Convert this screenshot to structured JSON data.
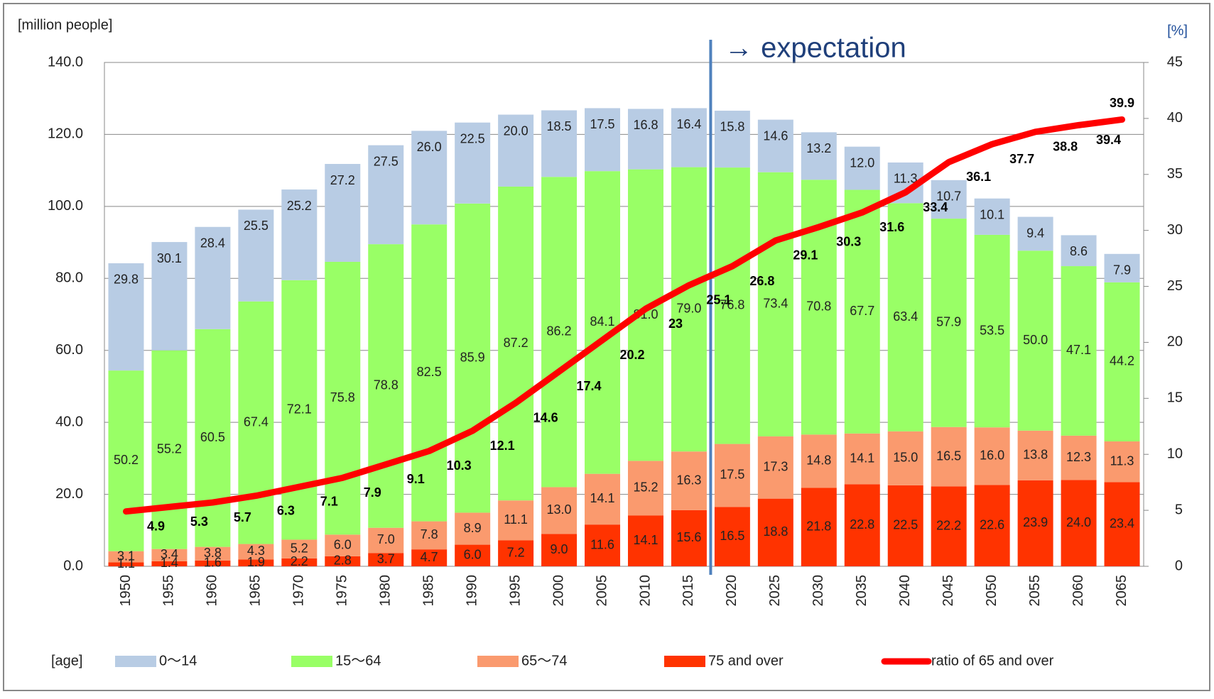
{
  "chart_data": {
    "type": "bar",
    "stacked": true,
    "y_axis_label": "[million people]",
    "y2_axis_label": "[%]",
    "legend_title": "[age]",
    "annotation": "→ expectation",
    "categories": [
      "1950",
      "1955",
      "1960",
      "1965",
      "1970",
      "1975",
      "1980",
      "1985",
      "1990",
      "1995",
      "2000",
      "2005",
      "2010",
      "2015",
      "2020",
      "2025",
      "2030",
      "2035",
      "2040",
      "2045",
      "2050",
      "2055",
      "2060",
      "2065"
    ],
    "series": [
      {
        "name": "75 and over",
        "color": "#ff3300",
        "values": [
          1.1,
          1.4,
          1.6,
          1.9,
          2.2,
          2.8,
          3.7,
          4.7,
          6.0,
          7.2,
          9.0,
          11.6,
          14.1,
          15.6,
          16.5,
          18.8,
          21.8,
          22.8,
          22.5,
          22.2,
          22.6,
          23.9,
          24.0,
          23.4
        ],
        "value_labels": [
          "1.1",
          "1.4",
          "1.6",
          "1.9",
          "2.2",
          "2.8",
          "3.7",
          "4.7",
          "6.0",
          "7.2",
          "9.0",
          "11.6",
          "14.1",
          "15.6",
          "16.5",
          "18.8",
          "21.8",
          "22.8",
          "22.5",
          "22.2",
          "22.6",
          "23.9",
          "24.0",
          "23.4"
        ]
      },
      {
        "name": "65〜74",
        "color": "#fa9a6e",
        "values": [
          3.1,
          3.4,
          3.8,
          4.3,
          5.2,
          6.0,
          7.0,
          7.8,
          8.9,
          11.1,
          13.0,
          14.1,
          15.2,
          16.3,
          17.5,
          17.3,
          14.8,
          14.1,
          15.0,
          16.5,
          16.0,
          13.8,
          12.3,
          11.3
        ],
        "value_labels": [
          "3.1",
          "3.4",
          "3.8",
          "4.3",
          "5.2",
          "6.0",
          "7.0",
          "7.8",
          "8.9",
          "11.1",
          "13.0",
          "14.1",
          "15.2",
          "16.3",
          "17.5",
          "17.3",
          "14.8",
          "14.1",
          "15.0",
          "16.5",
          "16.0",
          "13.8",
          "12.3",
          "11.3"
        ]
      },
      {
        "name": "15〜64",
        "color": "#99ff66",
        "values": [
          50.2,
          55.2,
          60.5,
          67.4,
          72.1,
          75.8,
          78.8,
          82.5,
          85.9,
          87.2,
          86.2,
          84.1,
          81.0,
          79.0,
          76.8,
          73.4,
          70.8,
          67.7,
          63.4,
          57.9,
          53.5,
          50.0,
          47.1,
          44.2
        ],
        "value_labels": [
          "50.2",
          "55.2",
          "60.5",
          "67.4",
          "72.1",
          "75.8",
          "78.8",
          "82.5",
          "85.9",
          "87.2",
          "86.2",
          "84.1",
          "81.0",
          "79.0",
          "76.8",
          "73.4",
          "70.8",
          "67.7",
          "63.4",
          "57.9",
          "53.5",
          "50.0",
          "47.1",
          "44.2"
        ]
      },
      {
        "name": "0〜14",
        "color": "#b8cce4",
        "values": [
          29.8,
          30.1,
          28.4,
          25.5,
          25.2,
          27.2,
          27.5,
          26.0,
          22.5,
          20.0,
          18.5,
          17.5,
          16.8,
          16.4,
          15.8,
          14.6,
          13.2,
          12.0,
          11.3,
          10.7,
          10.1,
          9.4,
          8.6,
          7.9
        ],
        "value_labels": [
          "29.8",
          "30.1",
          "28.4",
          "25.5",
          "25.2",
          "27.2",
          "27.5",
          "26.0",
          "22.5",
          "20.0",
          "18.5",
          "17.5",
          "16.8",
          "16.4",
          "15.8",
          "14.6",
          "13.2",
          "12.0",
          "11.3",
          "10.7",
          "10.1",
          "9.4",
          "8.6",
          "7.9"
        ]
      },
      {
        "name": "ratio of 65 and over",
        "type": "line",
        "axis": "y2",
        "color": "#ff0000",
        "values": [
          4.9,
          5.3,
          5.7,
          6.3,
          7.1,
          7.9,
          9.1,
          10.3,
          12.1,
          14.6,
          17.4,
          20.2,
          23,
          25.1,
          26.8,
          29.1,
          30.3,
          31.6,
          33.4,
          36.1,
          37.7,
          38.8,
          39.4,
          39.9
        ]
      }
    ],
    "ylim": [
      0,
      140
    ],
    "yticks": [
      {
        "value": 0,
        "label": "0.0"
      },
      {
        "value": 20,
        "label": "20.0"
      },
      {
        "value": 40,
        "label": "40.0"
      },
      {
        "value": 60,
        "label": "60.0"
      },
      {
        "value": 80,
        "label": "80.0"
      },
      {
        "value": 100,
        "label": "100.0"
      },
      {
        "value": 120,
        "label": "120.0"
      },
      {
        "value": 140,
        "label": "140.0"
      }
    ],
    "y2lim": [
      0,
      45
    ],
    "y2ticks": [
      0,
      5,
      10,
      15,
      20,
      25,
      30,
      35,
      40,
      45
    ],
    "grid": true,
    "legend": "bottom"
  }
}
